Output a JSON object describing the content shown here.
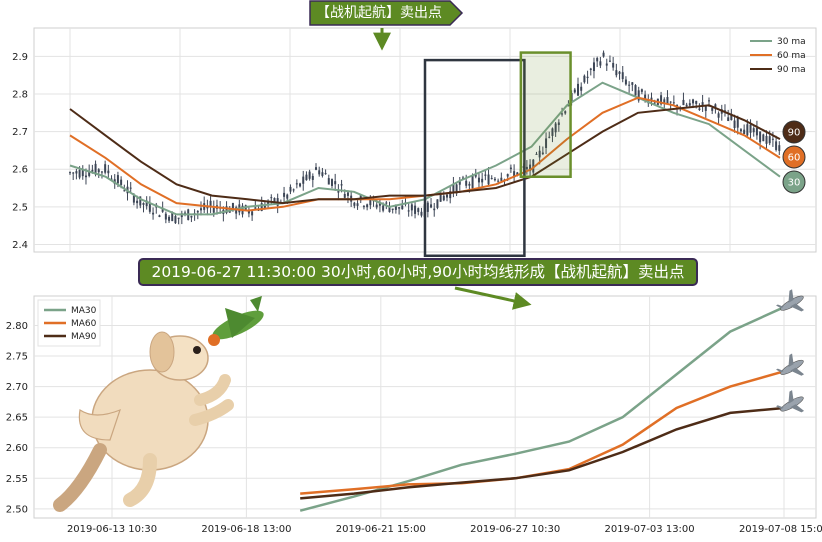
{
  "top_flag": "【战机起航】卖出点",
  "banner": "2019-06-27 11:30:00 30小时,60小时,90小时均线形成【战机起航】卖出点",
  "colors": {
    "ma30": "#7ba389",
    "ma60": "#e06f26",
    "ma90": "#4e2c17",
    "banner": "#5d8a23",
    "box_dark": "#2f3640",
    "box_green": "#6a8f2c",
    "candle": "#3c4555"
  },
  "chart_data": [
    {
      "type": "line",
      "yticks": [
        "2.4",
        "2.5",
        "2.6",
        "2.7",
        "2.8",
        "2.9"
      ],
      "ylim": [
        2.38,
        2.97
      ],
      "legend_position": "top-right",
      "grid": true,
      "legend": [
        {
          "name": "30 ma",
          "key": "ma30"
        },
        {
          "name": "60 ma",
          "key": "ma60"
        },
        {
          "name": "90 ma",
          "key": "ma90"
        }
      ],
      "x": [
        0,
        5,
        10,
        15,
        20,
        25,
        30,
        35,
        40,
        45,
        50,
        55,
        60,
        65,
        70,
        75,
        80,
        85,
        90,
        95,
        100
      ],
      "price": [
        2.59,
        2.6,
        2.51,
        2.47,
        2.5,
        2.49,
        2.52,
        2.6,
        2.52,
        2.5,
        2.49,
        2.56,
        2.58,
        2.6,
        2.77,
        2.9,
        2.8,
        2.77,
        2.77,
        2.71,
        2.66
      ],
      "series": [
        {
          "key": "ma30",
          "values": [
            2.61,
            2.58,
            2.52,
            2.48,
            2.48,
            2.5,
            2.51,
            2.55,
            2.54,
            2.5,
            2.52,
            2.57,
            2.61,
            2.66,
            2.77,
            2.83,
            2.79,
            2.75,
            2.72,
            2.65,
            2.58
          ]
        },
        {
          "key": "ma60",
          "values": [
            2.69,
            2.63,
            2.56,
            2.51,
            2.5,
            2.49,
            2.5,
            2.52,
            2.52,
            2.52,
            2.53,
            2.54,
            2.56,
            2.6,
            2.68,
            2.75,
            2.79,
            2.77,
            2.73,
            2.69,
            2.63
          ]
        },
        {
          "key": "ma90",
          "values": [
            2.76,
            2.69,
            2.62,
            2.56,
            2.53,
            2.52,
            2.51,
            2.52,
            2.52,
            2.53,
            2.53,
            2.54,
            2.55,
            2.58,
            2.64,
            2.7,
            2.75,
            2.76,
            2.77,
            2.73,
            2.68
          ]
        }
      ],
      "end_badges": [
        "90",
        "60",
        "30"
      ],
      "annotation_boxes": [
        {
          "x0": 50,
          "x1": 64,
          "y0": 2.37,
          "y1": 2.89,
          "color": "box_dark"
        },
        {
          "x0": 63.5,
          "x1": 70.5,
          "y0": 2.58,
          "y1": 2.91,
          "color": "box_green"
        }
      ]
    },
    {
      "type": "line",
      "categories": [
        "2019-06-13 10:30",
        "2019-06-18 13:00",
        "2019-06-21 15:00",
        "2019-06-27 10:30",
        "2019-07-03 13:00",
        "2019-07-08 15:00"
      ],
      "yticks": [
        "2.50",
        "2.55",
        "2.60",
        "2.65",
        "2.70",
        "2.75",
        "2.80"
      ],
      "ylim": [
        2.485,
        2.845
      ],
      "legend_position": "top-left",
      "grid": true,
      "x": [
        1.4,
        1.8,
        2.2,
        2.6,
        3.0,
        3.4,
        3.8,
        4.2,
        4.6,
        5.0
      ],
      "series": [
        {
          "name": "MA30",
          "key": "ma30",
          "values": [
            2.497,
            2.52,
            2.545,
            2.572,
            2.59,
            2.61,
            2.65,
            2.72,
            2.79,
            2.83
          ]
        },
        {
          "name": "MA60",
          "key": "ma60",
          "values": [
            2.525,
            2.532,
            2.54,
            2.542,
            2.55,
            2.565,
            2.605,
            2.665,
            2.7,
            2.725
          ]
        },
        {
          "name": "MA90",
          "key": "ma90",
          "values": [
            2.517,
            2.525,
            2.535,
            2.543,
            2.55,
            2.563,
            2.593,
            2.63,
            2.657,
            2.665
          ]
        }
      ]
    }
  ]
}
